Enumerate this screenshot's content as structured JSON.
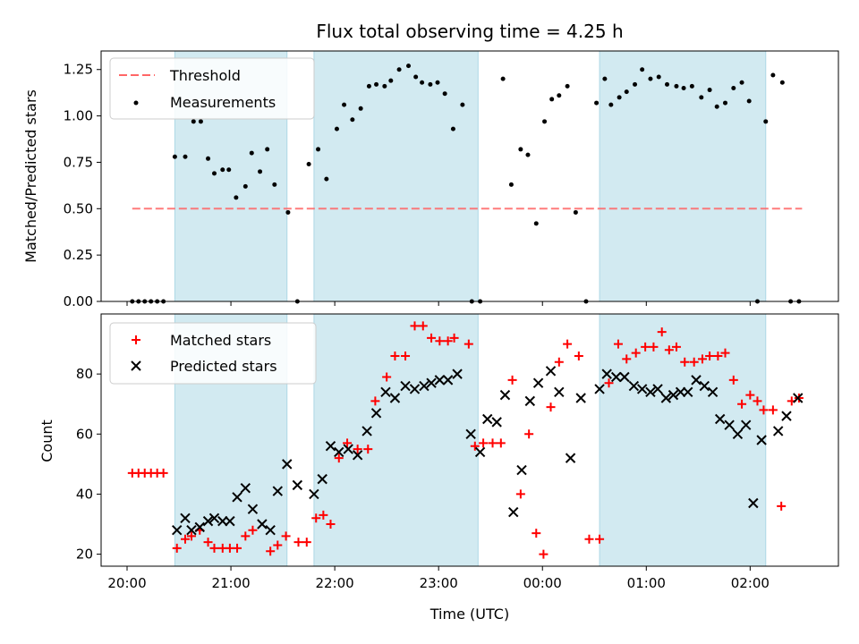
{
  "figure": {
    "title": "Flux total observing time = 4.25 h"
  },
  "colors": {
    "band": "#add8e6",
    "threshold": "#ff6666",
    "measurements": "#000000",
    "matched": "#ff0000",
    "predicted": "#000000"
  },
  "chart_data": [
    {
      "type": "scatter",
      "title": "Flux total observing time = 4.25 h",
      "xlabel": "",
      "ylabel": "Matched/Predicted stars",
      "x_unit": "hours since 20:00 UTC",
      "xlim": [
        -0.25,
        6.85
      ],
      "ylim": [
        0.0,
        1.35
      ],
      "yticks": [
        "0.00",
        "0.25",
        "0.50",
        "0.75",
        "1.00",
        "1.25"
      ],
      "legend": {
        "placement": "upper-left",
        "entries": [
          "Threshold",
          "Measurements"
        ]
      },
      "bands": [
        [
          0.46,
          1.54
        ],
        [
          1.8,
          3.38
        ],
        [
          4.55,
          6.15
        ]
      ],
      "threshold": {
        "name": "Threshold",
        "y": 0.5,
        "x_range": [
          0.05,
          6.5
        ]
      },
      "series": [
        {
          "name": "Measurements",
          "x": [
            0.05,
            0.11,
            0.17,
            0.23,
            0.29,
            0.35,
            0.46,
            0.56,
            0.64,
            0.71,
            0.78,
            0.84,
            0.92,
            0.98,
            1.05,
            1.14,
            1.2,
            1.28,
            1.35,
            1.42,
            1.55,
            1.64,
            1.75,
            1.84,
            1.92,
            2.02,
            2.09,
            2.17,
            2.25,
            2.33,
            2.4,
            2.48,
            2.54,
            2.62,
            2.71,
            2.78,
            2.84,
            2.92,
            2.99,
            3.06,
            3.14,
            3.23,
            3.32,
            3.4,
            3.62,
            3.7,
            3.79,
            3.86,
            3.94,
            4.02,
            4.09,
            4.16,
            4.24,
            4.32,
            4.42,
            4.52,
            4.6,
            4.66,
            4.74,
            4.81,
            4.89,
            4.96,
            5.04,
            5.12,
            5.2,
            5.29,
            5.36,
            5.44,
            5.53,
            5.61,
            5.68,
            5.76,
            5.84,
            5.92,
            5.99,
            6.07,
            6.15,
            6.22,
            6.31,
            6.39,
            6.47
          ],
          "y": [
            0.0,
            0.0,
            0.0,
            0.0,
            0.0,
            0.0,
            0.78,
            0.78,
            0.97,
            0.97,
            0.77,
            0.69,
            0.71,
            0.71,
            0.56,
            0.62,
            0.8,
            0.7,
            0.82,
            0.63,
            0.48,
            0.0,
            0.74,
            0.82,
            0.66,
            0.93,
            1.06,
            0.98,
            1.04,
            1.16,
            1.17,
            1.16,
            1.19,
            1.25,
            1.27,
            1.21,
            1.18,
            1.17,
            1.18,
            1.12,
            0.93,
            1.06,
            0.0,
            0.0,
            1.2,
            0.63,
            0.82,
            0.79,
            0.42,
            0.97,
            1.09,
            1.11,
            1.16,
            0.48,
            0.0,
            1.07,
            1.2,
            1.06,
            1.1,
            1.13,
            1.17,
            1.25,
            1.2,
            1.21,
            1.17,
            1.16,
            1.15,
            1.16,
            1.1,
            1.14,
            1.05,
            1.07,
            1.15,
            1.18,
            1.08,
            0.0,
            0.97,
            1.22,
            1.18,
            0.0,
            0.0
          ]
        }
      ]
    },
    {
      "type": "scatter",
      "title": "",
      "xlabel": "Time (UTC)",
      "ylabel": "Count",
      "x_unit": "hours since 20:00 UTC",
      "xlim": [
        -0.25,
        6.85
      ],
      "ylim": [
        16,
        100
      ],
      "xtick_positions": [
        0,
        1,
        2,
        3,
        4,
        5,
        6
      ],
      "xticks": [
        "20:00",
        "21:00",
        "22:00",
        "23:00",
        "00:00",
        "01:00",
        "02:00"
      ],
      "ytick_values": [
        20,
        40,
        60,
        80
      ],
      "yticks": [
        "20",
        "40",
        "60",
        "80"
      ],
      "legend": {
        "placement": "upper-left",
        "entries": [
          "Matched stars",
          "Predicted stars"
        ]
      },
      "bands": [
        [
          0.46,
          1.54
        ],
        [
          1.8,
          3.38
        ],
        [
          4.55,
          6.15
        ]
      ],
      "series": [
        {
          "name": "Matched stars",
          "x": [
            0.05,
            0.11,
            0.17,
            0.23,
            0.29,
            0.35,
            0.48,
            0.56,
            0.62,
            0.7,
            0.78,
            0.84,
            0.92,
            0.99,
            1.06,
            1.14,
            1.21,
            1.38,
            1.45,
            1.53,
            1.65,
            1.73,
            1.82,
            1.89,
            1.96,
            2.04,
            2.12,
            2.22,
            2.32,
            2.39,
            2.5,
            2.58,
            2.68,
            2.77,
            2.85,
            2.93,
            3.01,
            3.09,
            3.15,
            3.29,
            3.35,
            3.43,
            3.52,
            3.6,
            3.71,
            3.79,
            3.87,
            3.94,
            4.01,
            4.08,
            4.16,
            4.24,
            4.35,
            4.45,
            4.55,
            4.64,
            4.73,
            4.81,
            4.9,
            4.99,
            5.07,
            5.15,
            5.22,
            5.29,
            5.37,
            5.46,
            5.54,
            5.61,
            5.69,
            5.76,
            5.84,
            5.92,
            6.0,
            6.07,
            6.13,
            6.22,
            6.3,
            6.4,
            6.47
          ],
          "y": [
            47,
            47,
            47,
            47,
            47,
            47,
            22,
            25,
            26,
            28,
            24,
            22,
            22,
            22,
            22,
            26,
            28,
            21,
            23,
            26,
            24,
            24,
            32,
            33,
            30,
            52,
            57,
            55,
            55,
            71,
            79,
            86,
            86,
            96,
            96,
            92,
            91,
            91,
            92,
            90,
            56,
            57,
            57,
            57,
            78,
            40,
            60,
            27,
            20,
            69,
            84,
            90,
            86,
            25,
            25,
            77,
            90,
            85,
            87,
            89,
            89,
            94,
            88,
            89,
            84,
            84,
            85,
            86,
            86,
            87,
            78,
            70,
            73,
            71,
            68,
            68,
            36,
            71,
            72
          ]
        },
        {
          "name": "Predicted stars",
          "x": [
            0.48,
            0.56,
            0.62,
            0.7,
            0.78,
            0.84,
            0.92,
            0.99,
            1.06,
            1.14,
            1.21,
            1.3,
            1.38,
            1.45,
            1.54,
            1.64,
            1.8,
            1.88,
            1.96,
            2.04,
            2.13,
            2.22,
            2.31,
            2.4,
            2.49,
            2.58,
            2.68,
            2.77,
            2.86,
            2.93,
            3.01,
            3.09,
            3.18,
            3.31,
            3.4,
            3.47,
            3.56,
            3.64,
            3.72,
            3.8,
            3.88,
            3.96,
            4.08,
            4.16,
            4.27,
            4.37,
            4.55,
            4.62,
            4.71,
            4.79,
            4.88,
            4.96,
            5.04,
            5.11,
            5.19,
            5.26,
            5.33,
            5.4,
            5.48,
            5.56,
            5.64,
            5.71,
            5.8,
            5.88,
            5.96,
            6.03,
            6.11,
            6.27,
            6.35,
            6.46
          ],
          "y": [
            28,
            32,
            28,
            29,
            31,
            32,
            31,
            31,
            39,
            42,
            35,
            30,
            28,
            41,
            50,
            43,
            40,
            45,
            56,
            54,
            55,
            53,
            61,
            67,
            74,
            72,
            76,
            75,
            76,
            77,
            78,
            78,
            80,
            60,
            54,
            65,
            64,
            73,
            34,
            48,
            71,
            77,
            81,
            74,
            52,
            72,
            75,
            80,
            79,
            79,
            76,
            75,
            74,
            75,
            72,
            73,
            74,
            74,
            78,
            76,
            74,
            65,
            63,
            60,
            63,
            37,
            58,
            61,
            66,
            72
          ]
        }
      ]
    }
  ]
}
